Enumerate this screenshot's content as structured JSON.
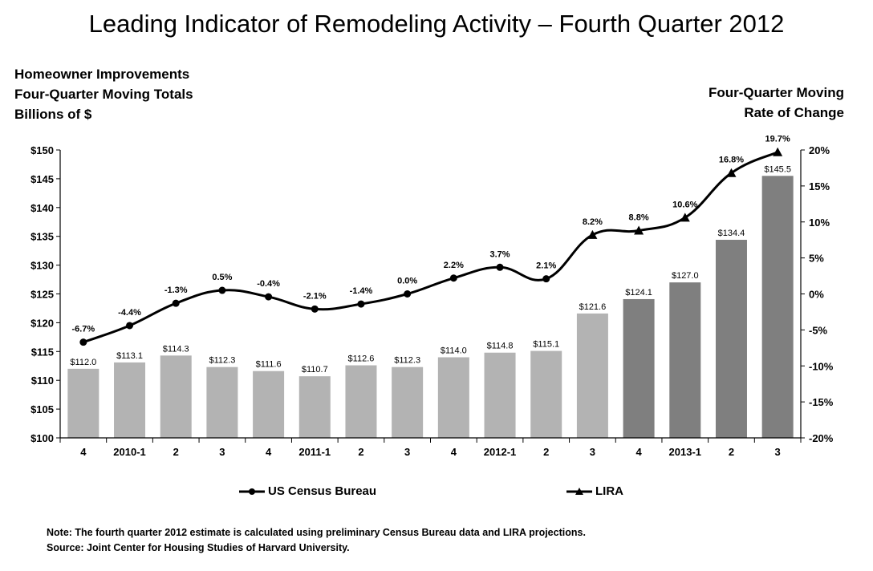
{
  "title": "Leading Indicator of Remodeling Activity – Fourth Quarter 2012",
  "left_axis_title": [
    "Homeowner Improvements",
    "Four-Quarter Moving Totals",
    "Billions of $"
  ],
  "right_axis_title": [
    "Four-Quarter Moving",
    "Rate of Change"
  ],
  "notes": {
    "note": "Note: The fourth quarter 2012 estimate is calculated using preliminary Census Bureau data and LIRA projections.",
    "source": "Source: Joint Center for Housing Studies of Harvard University."
  },
  "legend": {
    "census": "US Census  Bureau",
    "lira": "LIRA"
  },
  "colors": {
    "bar_census": "#b3b3b3",
    "bar_lira": "#7f7f7f",
    "line": "#000000"
  },
  "chart_data": {
    "type": "bar",
    "categories": [
      "4",
      "2010-1",
      "2",
      "3",
      "4",
      "2011-1",
      "2",
      "3",
      "4",
      "2012-1",
      "2",
      "3",
      "4",
      "2013-1",
      "2",
      "3"
    ],
    "bars": {
      "values": [
        112.0,
        113.1,
        114.3,
        112.3,
        111.6,
        110.7,
        112.6,
        112.3,
        114.0,
        114.8,
        115.1,
        121.6,
        124.1,
        127.0,
        134.4,
        145.5
      ],
      "labels": [
        "$112.0",
        "$113.1",
        "$114.3",
        "$112.3",
        "$111.6",
        "$110.7",
        "$112.6",
        "$112.3",
        "$114.0",
        "$114.8",
        "$115.1",
        "$121.6",
        "$124.1",
        "$127.0",
        "$134.4",
        "$145.5"
      ],
      "source": [
        "census",
        "census",
        "census",
        "census",
        "census",
        "census",
        "census",
        "census",
        "census",
        "census",
        "census",
        "census",
        "lira",
        "lira",
        "lira",
        "lira"
      ]
    },
    "line": {
      "values": [
        -6.7,
        -4.4,
        -1.3,
        0.5,
        -0.4,
        -2.1,
        -1.4,
        0.0,
        2.2,
        3.7,
        2.1,
        8.2,
        8.8,
        10.6,
        16.8,
        19.7
      ],
      "labels": [
        "-6.7%",
        "-4.4%",
        "-1.3%",
        "0.5%",
        "-0.4%",
        "-2.1%",
        "-1.4%",
        "0.0%",
        "2.2%",
        "3.7%",
        "2.1%",
        "8.2%",
        "8.8%",
        "10.6%",
        "16.8%",
        "19.7%"
      ],
      "marker": [
        "circle",
        "circle",
        "circle",
        "circle",
        "circle",
        "circle",
        "circle",
        "circle",
        "circle",
        "circle",
        "circle",
        "triangle",
        "triangle",
        "triangle",
        "triangle",
        "triangle"
      ]
    },
    "left_axis": {
      "min": 100,
      "max": 150,
      "step": 5,
      "ticks": [
        "$100",
        "$105",
        "$110",
        "$115",
        "$120",
        "$125",
        "$130",
        "$135",
        "$140",
        "$145",
        "$150"
      ]
    },
    "right_axis": {
      "min": -20,
      "max": 20,
      "step": 5,
      "ticks": [
        "-20%",
        "-15%",
        "-10%",
        "-5%",
        "0%",
        "5%",
        "10%",
        "15%",
        "20%"
      ]
    },
    "grid": false
  }
}
